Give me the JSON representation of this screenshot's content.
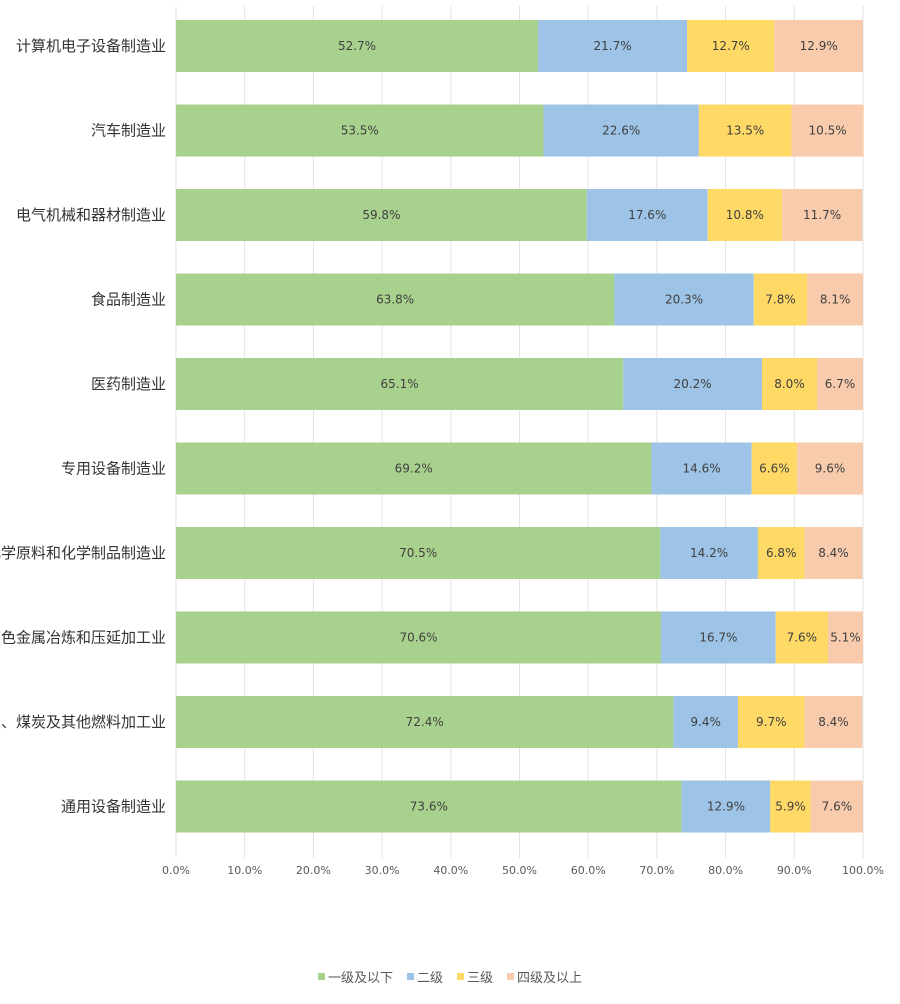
{
  "chart_data": {
    "type": "bar",
    "orientation": "horizontal",
    "stacked": "percent",
    "title": "",
    "xlabel": "",
    "ylabel": "",
    "xlim": [
      0,
      100
    ],
    "x_ticks": [
      "0.0%",
      "10.0%",
      "20.0%",
      "30.0%",
      "40.0%",
      "50.0%",
      "60.0%",
      "70.0%",
      "80.0%",
      "90.0%",
      "100.0%"
    ],
    "grid": true,
    "legend_position": "bottom",
    "categories": [
      "计算机电子设备制造业",
      "汽车制造业",
      "电气机械和器材制造业",
      "食品制造业",
      "医药制造业",
      "专用设备制造业",
      "化学原料和化学制品制造业",
      "有色金属冶炼和压延加工业",
      "石油、煤炭及其他燃料加工业",
      "通用设备制造业"
    ],
    "series": [
      {
        "name": "一级及以下",
        "color": "#a9d18e",
        "values": [
          52.7,
          53.5,
          59.8,
          63.8,
          65.1,
          69.2,
          70.5,
          70.6,
          72.4,
          73.6
        ],
        "labels": [
          "52.7%",
          "53.5%",
          "59.8%",
          "63.8%",
          "65.1%",
          "69.2%",
          "70.5%",
          "70.6%",
          "72.4%",
          "73.6%"
        ]
      },
      {
        "name": "二级",
        "color": "#9dc3e6",
        "values": [
          21.7,
          22.6,
          17.6,
          20.3,
          20.2,
          14.6,
          14.2,
          16.7,
          9.4,
          12.9
        ],
        "labels": [
          "21.7%",
          "22.6%",
          "17.6%",
          "20.3%",
          "20.2%",
          "14.6%",
          "14.2%",
          "16.7%",
          "9.4%",
          "12.9%"
        ]
      },
      {
        "name": "三级",
        "color": "#ffd966",
        "values": [
          12.7,
          13.5,
          10.8,
          7.8,
          8.0,
          6.6,
          6.8,
          7.6,
          9.7,
          5.9
        ],
        "labels": [
          "12.7%",
          "13.5%",
          "10.8%",
          "7.8%",
          "8.0%",
          "6.6%",
          "6.8%",
          "7.6%",
          "9.7%",
          "5.9%"
        ]
      },
      {
        "name": "四级及以上",
        "color": "#f8cbad",
        "values": [
          12.9,
          10.5,
          11.7,
          8.1,
          6.7,
          9.6,
          8.4,
          5.1,
          8.4,
          7.6
        ],
        "labels": [
          "12.9%",
          "10.5%",
          "11.7%",
          "8.1%",
          "6.7%",
          "9.6%",
          "8.4%",
          "5.1%",
          "8.4%",
          "7.6%"
        ]
      }
    ]
  }
}
